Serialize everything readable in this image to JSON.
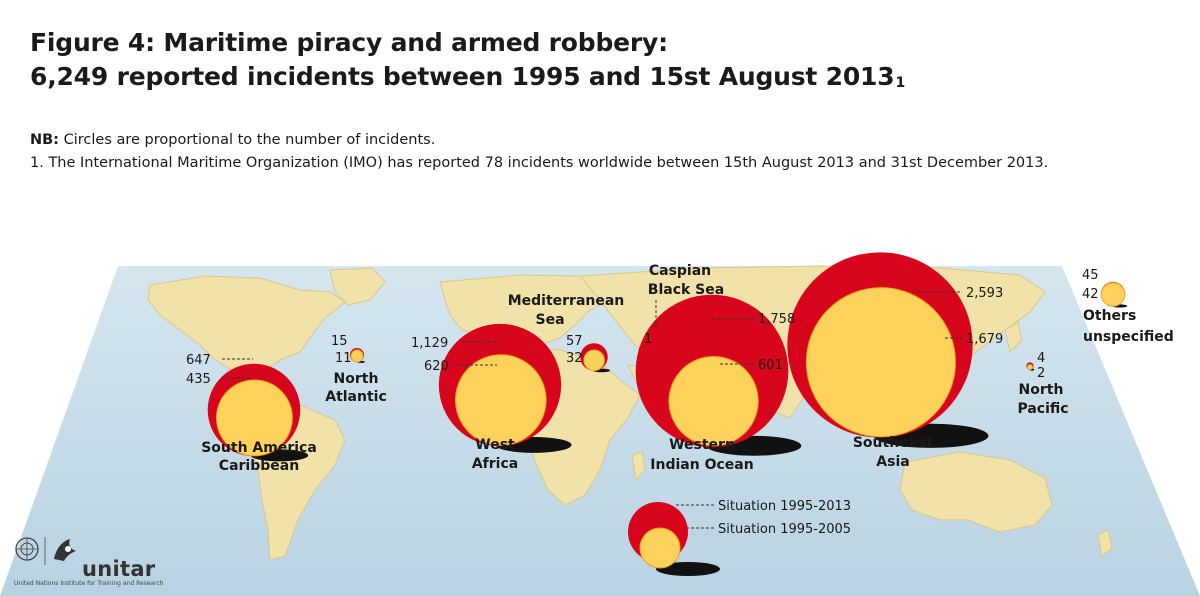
{
  "title": {
    "line1": "Figure 4: Maritime piracy and armed robbery:",
    "line2": "6,249 reported incidents between 1995 and 15st August 2013",
    "sup": "1"
  },
  "notes": {
    "nb_label": "NB:",
    "nb_text": " Circles are proportional to the number of incidents.",
    "footnote": "1. The International Maritime Organization (IMO) has reported 78 incidents worldwide between 15th August 2013 and 31st December 2013."
  },
  "colors": {
    "red": "#d7061c",
    "yellow": "#fcd25a",
    "land": "#f0e2a8",
    "sea": "#c9dde9"
  },
  "regions": [
    {
      "id": "south-america-caribbean",
      "label1": "South America",
      "label2": "Caribbean",
      "total": "647",
      "early": "435",
      "v_total": 647,
      "v_early": 435
    },
    {
      "id": "north-atlantic",
      "label1": "North",
      "label2": "Atlantic",
      "total": "15",
      "early": "11",
      "v_total": 15,
      "v_early": 11
    },
    {
      "id": "west-africa",
      "label1": "West",
      "label2": "Africa",
      "total": "1,129",
      "early": "620",
      "v_total": 1129,
      "v_early": 620
    },
    {
      "id": "mediterranean-sea",
      "label1": "Mediterranean",
      "label2": "Sea",
      "total": "57",
      "early": "32",
      "v_total": 57,
      "v_early": 32
    },
    {
      "id": "caspian-black-sea",
      "label1": "Caspian",
      "label2": "Black Sea",
      "total": "1"
    },
    {
      "id": "western-indian-ocean",
      "label1": "Western",
      "label2": "Indian Ocean",
      "total": "1,758",
      "early": "601",
      "v_total": 1758,
      "v_early": 601
    },
    {
      "id": "southeast-asia",
      "label1": "Southeast",
      "label2": "Asia",
      "total": "2,593",
      "early": "1,679",
      "v_total": 2593,
      "v_early": 1679
    },
    {
      "id": "north-pacific",
      "label1": "North",
      "label2": "Pacific",
      "total": "4",
      "early": "2",
      "v_total": 4,
      "v_early": 2
    },
    {
      "id": "others-unspecified",
      "label1": "Others",
      "label2": "unspecified",
      "total": "45",
      "early": "42",
      "v_total": 45,
      "v_early": 42
    }
  ],
  "legend": {
    "total": "Situation 1995-2013",
    "early": "Situation 1995-2005"
  },
  "logo": {
    "name": "unitar",
    "subtitle": "United Nations Institute for Training and Research"
  }
}
